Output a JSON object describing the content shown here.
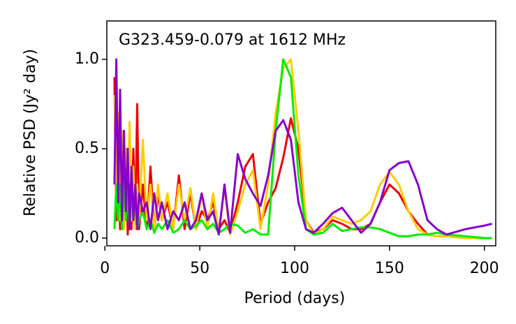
{
  "chart_data": {
    "type": "line",
    "title": "G323.459-0.079 at 1612 MHz",
    "xlabel": "Period (days)",
    "ylabel": "Relative PSD (Jy² day)",
    "x": [
      5,
      6,
      7,
      8,
      9,
      10,
      11,
      12,
      13,
      14,
      15,
      16,
      17,
      18,
      20,
      22,
      24,
      26,
      28,
      30,
      33,
      36,
      39,
      42,
      45,
      48,
      51,
      54,
      57,
      60,
      63,
      66,
      70,
      74,
      78,
      82,
      86,
      90,
      94,
      98,
      102,
      106,
      110,
      115,
      120,
      125,
      130,
      135,
      140,
      145,
      150,
      155,
      160,
      165,
      170,
      175,
      180,
      190,
      200,
      204
    ],
    "series": [
      {
        "color": "#ee0000",
        "values": [
          0.9,
          0.1,
          0.5,
          0.05,
          0.6,
          0.1,
          0.45,
          0.02,
          0.3,
          0.05,
          0.5,
          0.1,
          0.75,
          0.05,
          0.3,
          0.05,
          0.4,
          0.05,
          0.25,
          0.1,
          0.2,
          0.05,
          0.35,
          0.05,
          0.25,
          0.05,
          0.15,
          0.1,
          0.2,
          0.05,
          0.1,
          0.03,
          0.2,
          0.4,
          0.47,
          0.08,
          0.2,
          0.28,
          0.45,
          0.67,
          0.5,
          0.1,
          0.03,
          0.05,
          0.1,
          0.08,
          0.05,
          0.05,
          0.08,
          0.2,
          0.3,
          0.25,
          0.15,
          0.08,
          0.02,
          0.01,
          0.01,
          0.01,
          0.0,
          0.0
        ]
      },
      {
        "color": "#ffcc00",
        "values": [
          0.8,
          0.2,
          0.7,
          0.1,
          0.6,
          0.05,
          0.5,
          0.2,
          0.65,
          0.1,
          0.4,
          0.05,
          0.3,
          0.1,
          0.55,
          0.1,
          0.3,
          0.05,
          0.3,
          0.1,
          0.25,
          0.05,
          0.3,
          0.1,
          0.28,
          0.05,
          0.25,
          0.05,
          0.25,
          0.03,
          0.28,
          0.02,
          0.15,
          0.3,
          0.38,
          0.05,
          0.3,
          0.7,
          0.95,
          1.0,
          0.6,
          0.1,
          0.02,
          0.05,
          0.12,
          0.1,
          0.08,
          0.1,
          0.15,
          0.3,
          0.37,
          0.3,
          0.15,
          0.05,
          0.02,
          0.01,
          0.01,
          0.0,
          0.0,
          0.0
        ]
      },
      {
        "color": "#00ee00",
        "values": [
          0.05,
          0.3,
          0.1,
          0.3,
          0.05,
          0.35,
          0.1,
          0.25,
          0.05,
          0.3,
          0.1,
          0.2,
          0.05,
          0.1,
          0.15,
          0.05,
          0.1,
          0.03,
          0.08,
          0.05,
          0.1,
          0.03,
          0.05,
          0.1,
          0.05,
          0.07,
          0.1,
          0.05,
          0.08,
          0.03,
          0.05,
          0.08,
          0.07,
          0.03,
          0.05,
          0.02,
          0.02,
          0.6,
          1.0,
          0.9,
          0.35,
          0.05,
          0.02,
          0.03,
          0.08,
          0.04,
          0.05,
          0.06,
          0.06,
          0.05,
          0.03,
          0.01,
          0.01,
          0.02,
          0.02,
          0.03,
          0.02,
          0.01,
          0.0,
          0.0
        ]
      },
      {
        "color": "#8800cc",
        "values": [
          0.3,
          1.0,
          0.2,
          0.83,
          0.1,
          0.6,
          0.15,
          0.5,
          0.05,
          0.4,
          0.1,
          0.3,
          0.05,
          0.25,
          0.15,
          0.2,
          0.05,
          0.25,
          0.1,
          0.2,
          0.05,
          0.15,
          0.1,
          0.2,
          0.05,
          0.1,
          0.25,
          0.1,
          0.15,
          0.02,
          0.3,
          0.03,
          0.47,
          0.33,
          0.25,
          0.18,
          0.35,
          0.6,
          0.66,
          0.55,
          0.2,
          0.05,
          0.03,
          0.08,
          0.14,
          0.17,
          0.1,
          0.03,
          0.08,
          0.2,
          0.38,
          0.42,
          0.43,
          0.3,
          0.1,
          0.05,
          0.02,
          0.05,
          0.07,
          0.08
        ]
      }
    ],
    "xlim": [
      1,
      206
    ],
    "ylim": [
      -0.043,
      1.215
    ],
    "xticks": [
      0,
      50,
      100,
      150,
      200
    ],
    "yticks": [
      {
        "value": 0,
        "label": "0.0"
      },
      {
        "value": 0.5,
        "label": "0.5"
      },
      {
        "value": 1,
        "label": "1.0"
      }
    ],
    "grid": false
  }
}
